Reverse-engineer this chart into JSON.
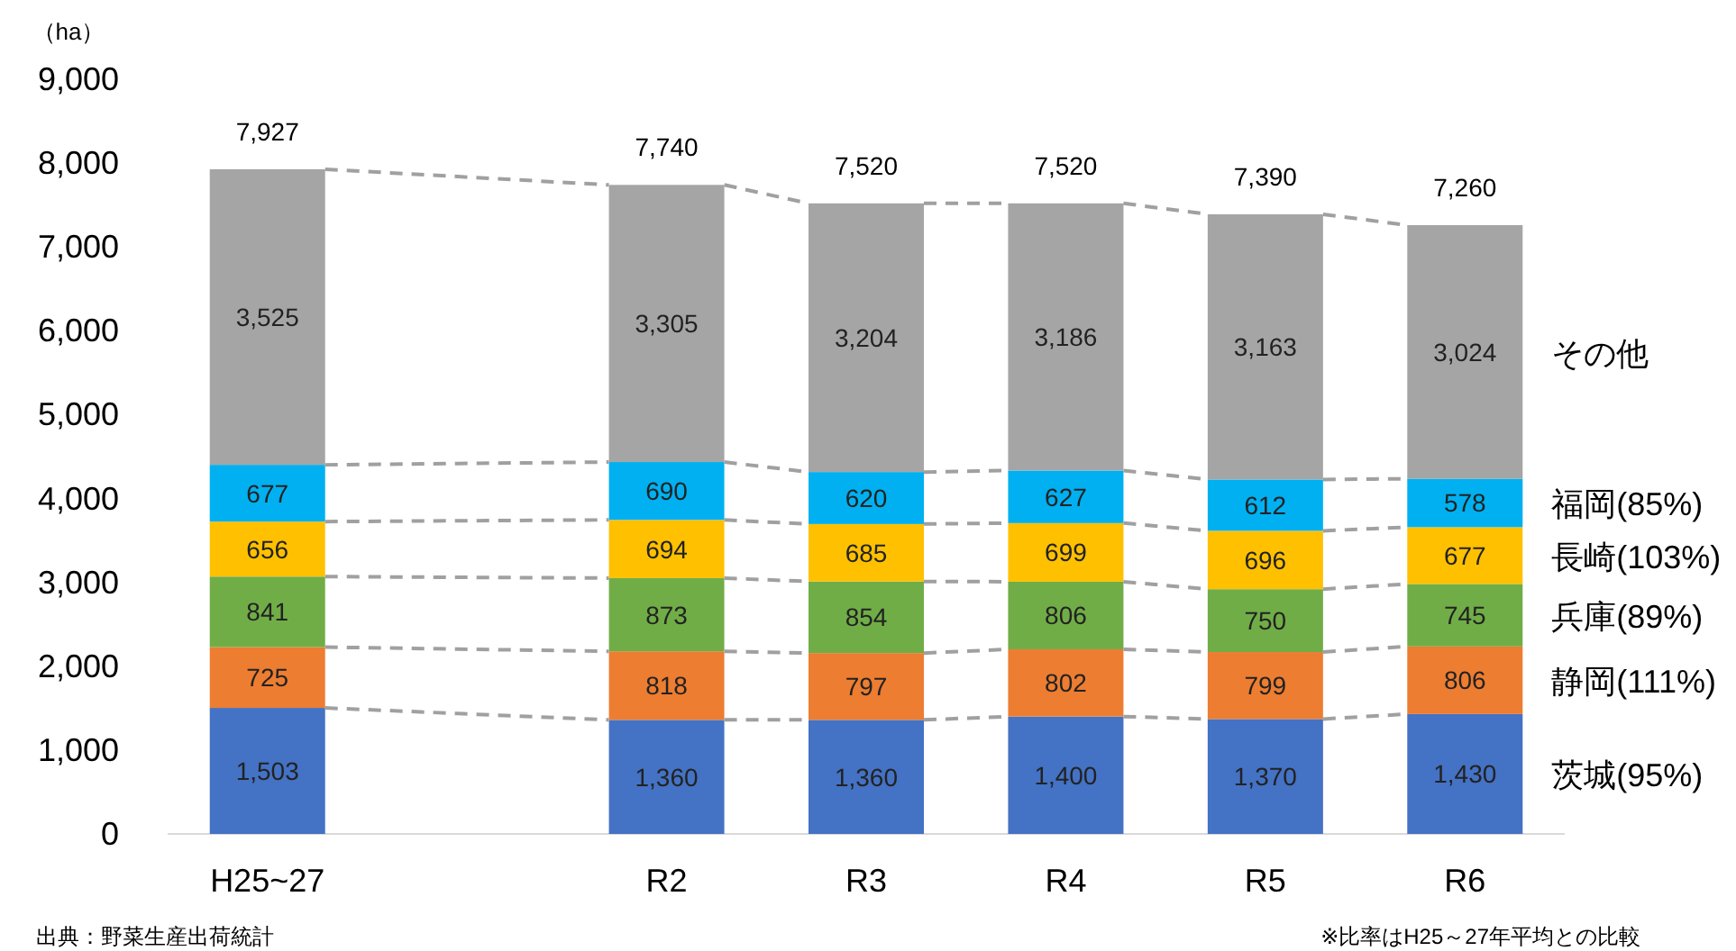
{
  "chart_data": {
    "type": "bar",
    "stacked": true,
    "ylabel": "（ha）",
    "categories": [
      "H25~27",
      null,
      "R2",
      "R3",
      "R4",
      "R5",
      "R6"
    ],
    "ylim": [
      0,
      9000
    ],
    "yticks": [
      {
        "value": 0,
        "label": "0"
      },
      {
        "value": 1000,
        "label": "1,000"
      },
      {
        "value": 2000,
        "label": "2,000"
      },
      {
        "value": 3000,
        "label": "3,000"
      },
      {
        "value": 4000,
        "label": "4,000"
      },
      {
        "value": 5000,
        "label": "5,000"
      },
      {
        "value": 6000,
        "label": "6,000"
      },
      {
        "value": 7000,
        "label": "7,000"
      },
      {
        "value": 8000,
        "label": "8,000"
      },
      {
        "value": 9000,
        "label": "9,000"
      }
    ],
    "grid": false,
    "series": [
      {
        "name": "茨城(95%)",
        "color": "#4472c4",
        "values": [
          1503,
          null,
          1360,
          1360,
          1400,
          1370,
          1430
        ],
        "value_labels": [
          "1,503",
          null,
          "1,360",
          "1,360",
          "1,400",
          "1,370",
          "1,430"
        ]
      },
      {
        "name": "静岡(111%)",
        "color": "#ed7d31",
        "values": [
          725,
          null,
          818,
          797,
          802,
          799,
          806
        ],
        "value_labels": [
          "725",
          null,
          "818",
          "797",
          "802",
          "799",
          "806"
        ]
      },
      {
        "name": "兵庫(89%)",
        "color": "#70ad47",
        "values": [
          841,
          null,
          873,
          854,
          806,
          750,
          745
        ],
        "value_labels": [
          "841",
          null,
          "873",
          "854",
          "806",
          "750",
          "745"
        ]
      },
      {
        "name": "長崎(103%)",
        "color": "#ffc000",
        "values": [
          656,
          null,
          694,
          685,
          699,
          696,
          677
        ],
        "value_labels": [
          "656",
          null,
          "694",
          "685",
          "699",
          "696",
          "677"
        ]
      },
      {
        "name": "福岡(85%)",
        "color": "#00b0f0",
        "values": [
          677,
          null,
          690,
          620,
          627,
          612,
          578
        ],
        "value_labels": [
          "677",
          null,
          "690",
          "620",
          "627",
          "612",
          "578"
        ]
      },
      {
        "name": "その他",
        "color": "#a5a5a5",
        "values": [
          3525,
          null,
          3305,
          3204,
          3186,
          3163,
          3024
        ],
        "value_labels": [
          "3,525",
          null,
          "3,305",
          "3,204",
          "3,186",
          "3,163",
          "3,024"
        ]
      }
    ],
    "totals": [
      "7,927",
      null,
      "7,740",
      "7,520",
      "7,520",
      "7,390",
      "7,260"
    ],
    "annotations": [
      "出典：野菜生産出荷統計",
      "※比率はH25～27年平均との比較"
    ]
  }
}
